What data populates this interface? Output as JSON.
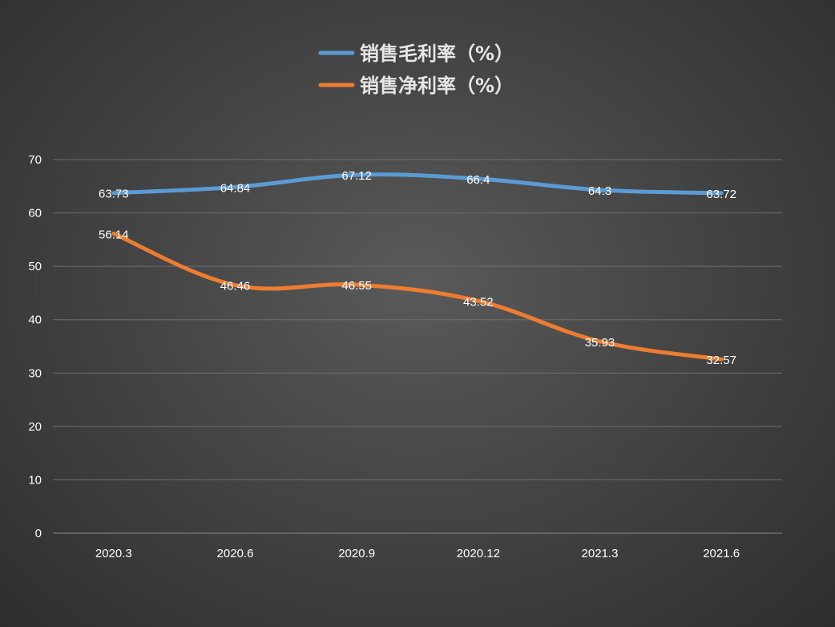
{
  "chart_data": {
    "type": "line",
    "categories": [
      "2020.3",
      "2020.6",
      "2020.9",
      "2020.12",
      "2021.3",
      "2021.6"
    ],
    "series": [
      {
        "name": "销售毛利率（%）",
        "values": [
          63.73,
          64.84,
          67.12,
          66.4,
          64.3,
          63.72
        ],
        "color": "#5b9bd5",
        "labels": [
          "63.73",
          "64.84",
          "67.12",
          "66.4",
          "64.3",
          "63.72"
        ]
      },
      {
        "name": "销售净利率（%）",
        "values": [
          56.14,
          46.46,
          46.55,
          43.52,
          35.93,
          32.57
        ],
        "color": "#ed7d31",
        "labels": [
          "56.14",
          "46.46",
          "46.55",
          "43.52",
          "35.93",
          "32.57"
        ]
      }
    ],
    "ylim": [
      0,
      70
    ],
    "yticks": [
      "0",
      "10",
      "20",
      "30",
      "40",
      "50",
      "60",
      "70"
    ],
    "grid": true,
    "smooth": true,
    "legend_position": "top-center",
    "xlabel": "",
    "ylabel": ""
  }
}
